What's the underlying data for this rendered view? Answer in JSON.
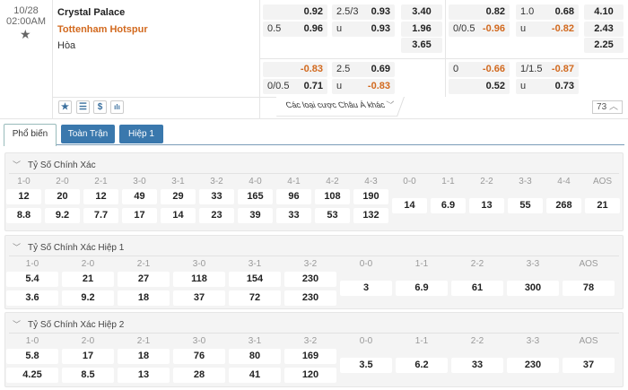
{
  "match": {
    "date": "10/28",
    "time": "02:00AM",
    "home": "Crystal Palace",
    "away": "Tottenham Hotspur",
    "draw": "Hòa"
  },
  "odds_fulltime": {
    "handicap": {
      "home": {
        "line": "",
        "value": "0.92"
      },
      "away": {
        "line": "0.5",
        "value": "0.96"
      }
    },
    "over_under": {
      "over": {
        "line": "2.5/3",
        "value": "0.93"
      },
      "under": {
        "line": "u",
        "value": "0.93"
      }
    },
    "x12": [
      "3.40",
      "1.96",
      "3.65"
    ]
  },
  "odds_fulltime_alt": {
    "handicap": {
      "home": {
        "line": "",
        "value": "-0.83"
      },
      "away": {
        "line": "0/0.5",
        "value": "0.71"
      }
    },
    "over_under": {
      "over": {
        "line": "2.5",
        "value": "0.69"
      },
      "under": {
        "line": "u",
        "value": "-0.83"
      }
    }
  },
  "odds_half": {
    "handicap": {
      "home": {
        "line": "",
        "value": "0.82"
      },
      "away": {
        "line": "0/0.5",
        "value": "-0.96"
      }
    },
    "over_under": {
      "over": {
        "line": "1.0",
        "value": "0.68"
      },
      "under": {
        "line": "u",
        "value": "-0.82"
      }
    },
    "x12": [
      "4.10",
      "2.43",
      "2.25"
    ]
  },
  "odds_half_alt": {
    "handicap": {
      "home": {
        "line": "0",
        "value": "-0.66"
      },
      "away": {
        "line": "",
        "value": "0.52"
      }
    },
    "over_under": {
      "over": {
        "line": "1/1.5",
        "value": "-0.87"
      },
      "under": {
        "line": "u",
        "value": "0.73"
      }
    }
  },
  "toolbar": {
    "icons": [
      "star-icon",
      "list-icon",
      "dollar-icon",
      "chart-icon"
    ],
    "icon_glyphs": [
      "★",
      "☰",
      "$",
      "ılı"
    ],
    "more_label": "Các loại cược Châu Á khác",
    "more_chevron": "﹀",
    "count": "73",
    "count_chevron": "︿"
  },
  "tabs": [
    {
      "label": "Phổ biến",
      "active": true
    },
    {
      "label": "Toàn Trận",
      "active": false
    },
    {
      "label": "Hiệp 1",
      "active": false
    }
  ],
  "colors": {
    "accent": "#3a78ad",
    "negative": "#d2691e"
  },
  "sections": [
    {
      "title": "Tỷ Số Chính Xác",
      "two_row": [
        {
          "score": "1-0",
          "home": "12",
          "away": "8.8"
        },
        {
          "score": "2-0",
          "home": "20",
          "away": "9.2"
        },
        {
          "score": "2-1",
          "home": "12",
          "away": "7.7"
        },
        {
          "score": "3-0",
          "home": "49",
          "away": "17"
        },
        {
          "score": "3-1",
          "home": "29",
          "away": "14"
        },
        {
          "score": "3-2",
          "home": "33",
          "away": "23"
        },
        {
          "score": "4-0",
          "home": "165",
          "away": "39"
        },
        {
          "score": "4-1",
          "home": "96",
          "away": "33"
        },
        {
          "score": "4-2",
          "home": "108",
          "away": "53"
        },
        {
          "score": "4-3",
          "home": "190",
          "away": "132"
        }
      ],
      "single": [
        {
          "score": "0-0",
          "value": "14"
        },
        {
          "score": "1-1",
          "value": "6.9"
        },
        {
          "score": "2-2",
          "value": "13"
        },
        {
          "score": "3-3",
          "value": "55"
        },
        {
          "score": "4-4",
          "value": "268"
        },
        {
          "score": "AOS",
          "value": "21"
        }
      ]
    },
    {
      "title": "Tỷ Số Chính Xác Hiệp 1",
      "two_row": [
        {
          "score": "1-0",
          "home": "5.4",
          "away": "3.6"
        },
        {
          "score": "2-0",
          "home": "21",
          "away": "9.2"
        },
        {
          "score": "2-1",
          "home": "27",
          "away": "18"
        },
        {
          "score": "3-0",
          "home": "118",
          "away": "37"
        },
        {
          "score": "3-1",
          "home": "154",
          "away": "72"
        },
        {
          "score": "3-2",
          "home": "230",
          "away": "230"
        }
      ],
      "single": [
        {
          "score": "0-0",
          "value": "3"
        },
        {
          "score": "1-1",
          "value": "6.9"
        },
        {
          "score": "2-2",
          "value": "61"
        },
        {
          "score": "3-3",
          "value": "300"
        },
        {
          "score": "AOS",
          "value": "78"
        }
      ]
    },
    {
      "title": "Tỷ Số Chính Xác Hiệp 2",
      "two_row": [
        {
          "score": "1-0",
          "home": "5.8",
          "away": "4.25"
        },
        {
          "score": "2-0",
          "home": "17",
          "away": "8.5"
        },
        {
          "score": "2-1",
          "home": "18",
          "away": "13"
        },
        {
          "score": "3-0",
          "home": "76",
          "away": "28"
        },
        {
          "score": "3-1",
          "home": "80",
          "away": "41"
        },
        {
          "score": "3-2",
          "home": "169",
          "away": "120"
        }
      ],
      "single": [
        {
          "score": "0-0",
          "value": "3.5"
        },
        {
          "score": "1-1",
          "value": "6.2"
        },
        {
          "score": "2-2",
          "value": "33"
        },
        {
          "score": "3-3",
          "value": "230"
        },
        {
          "score": "AOS",
          "value": "37"
        }
      ]
    }
  ]
}
